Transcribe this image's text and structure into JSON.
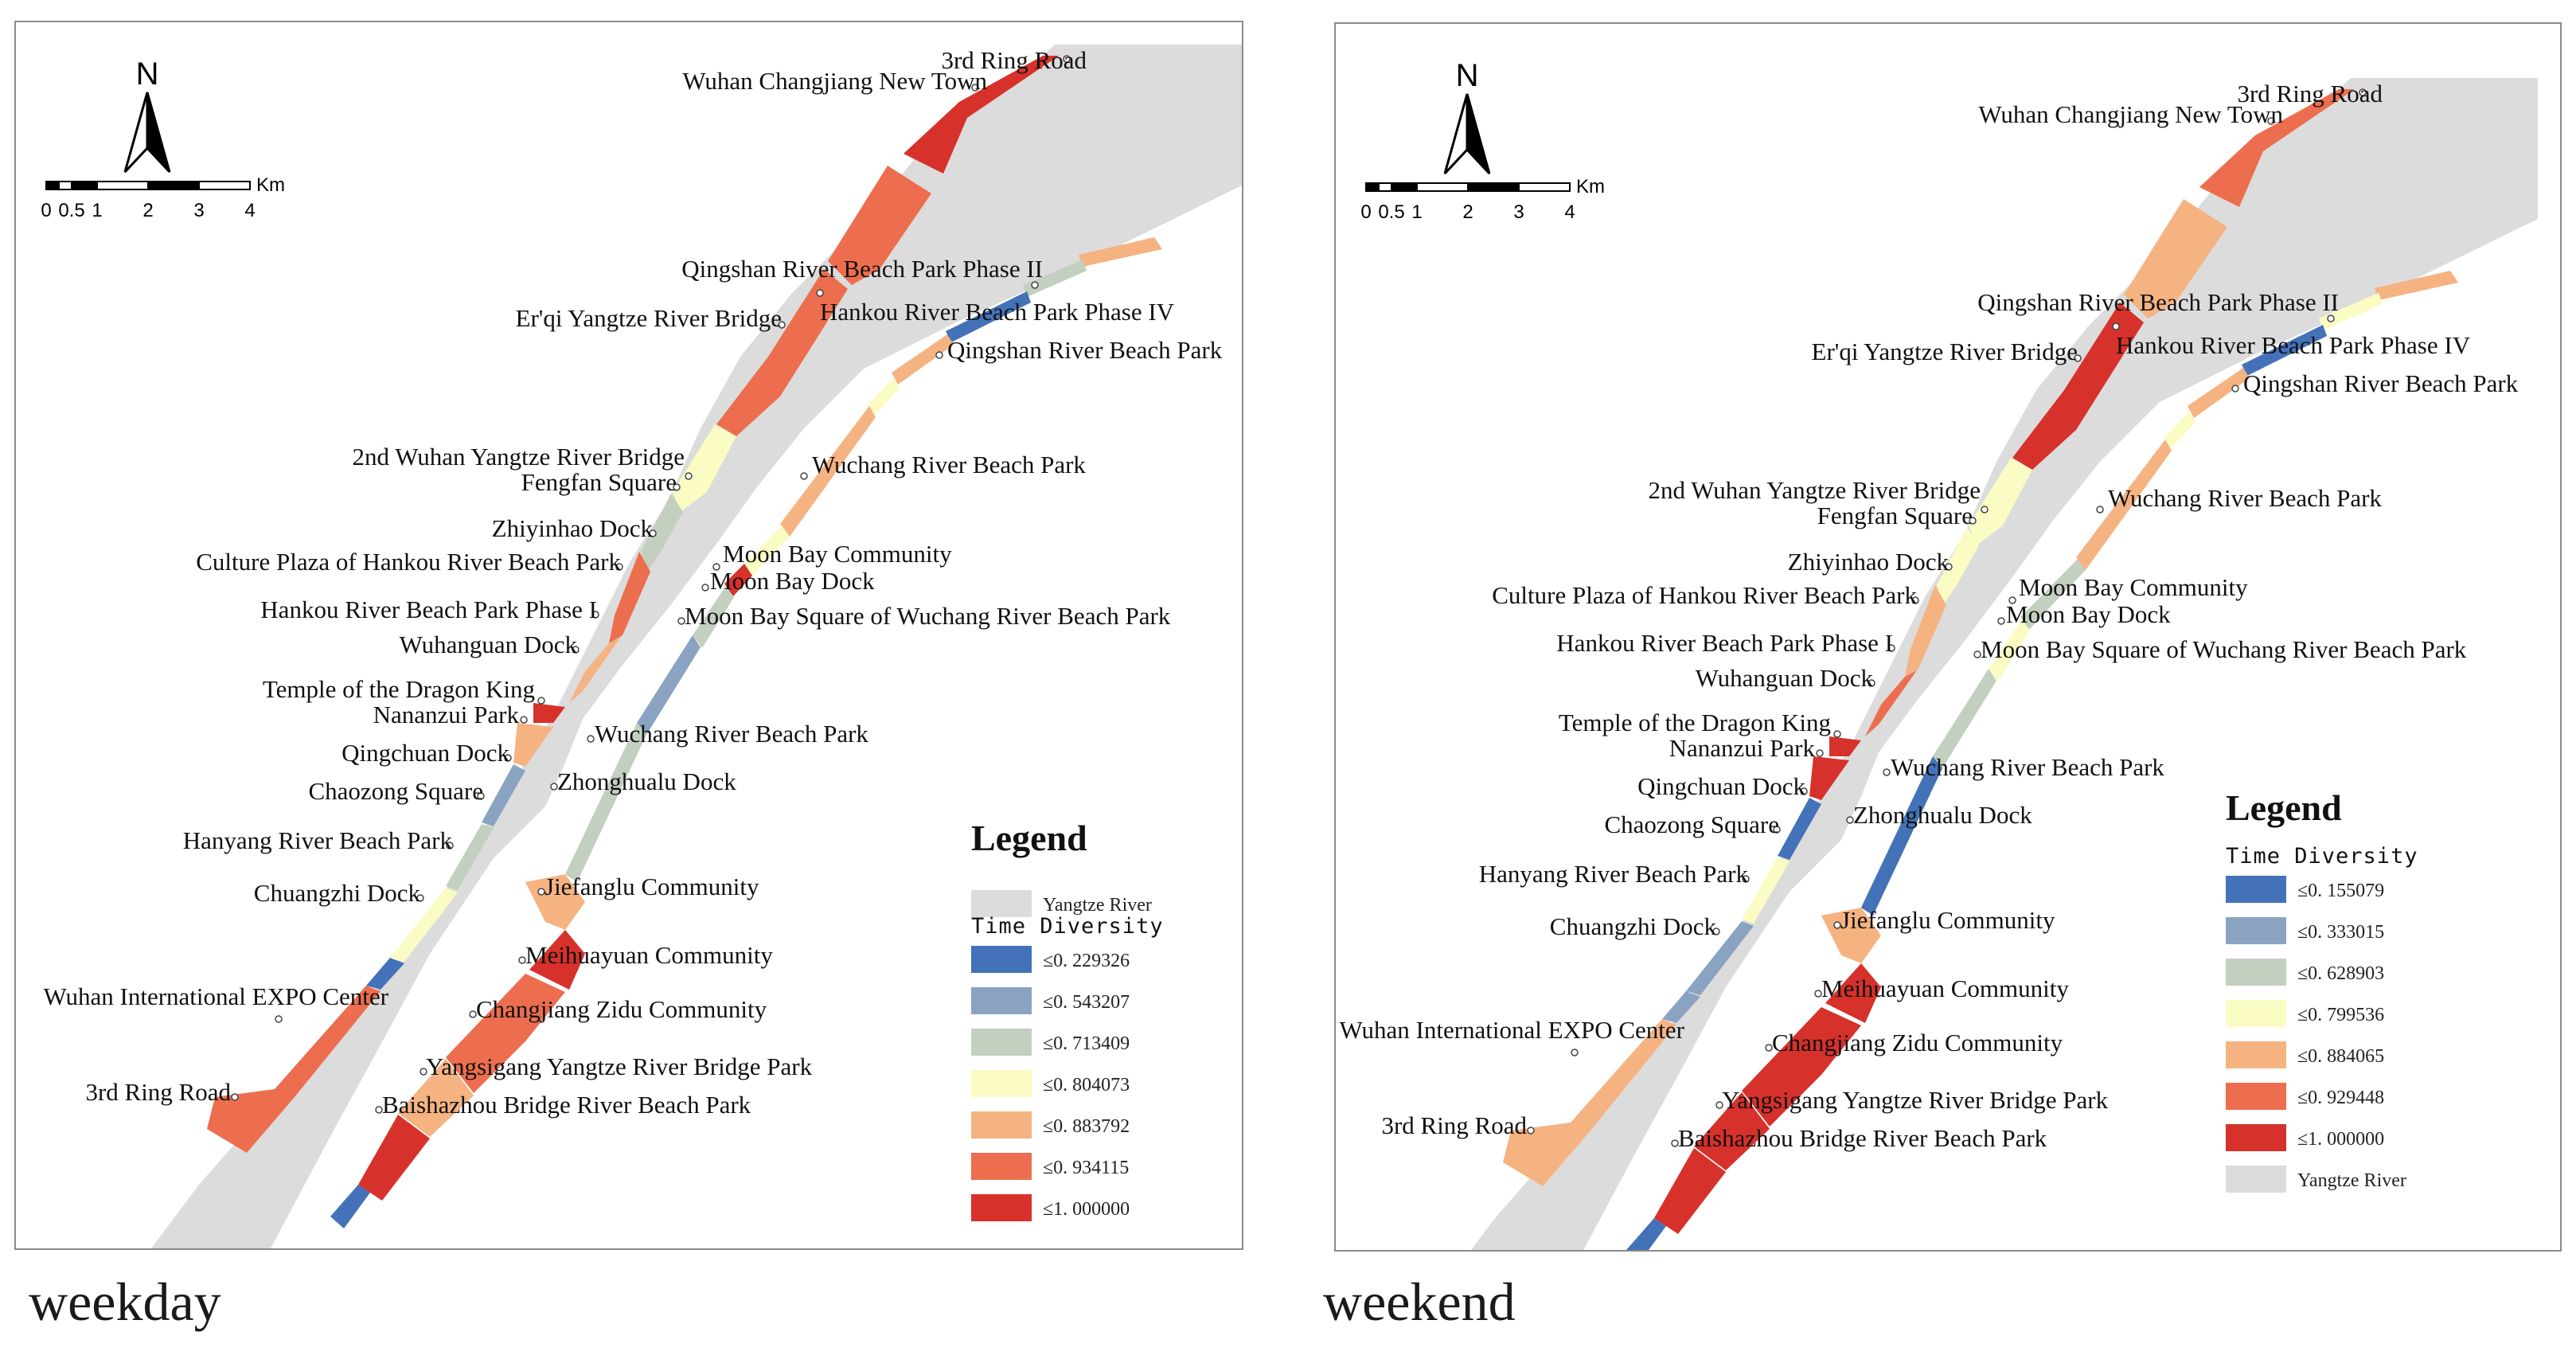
{
  "maps": [
    {
      "caption": "weekday",
      "legend": {
        "title": "Legend",
        "subtitle": "Time Diversity",
        "river_label": "Yangtze River",
        "river_first": true,
        "classes": [
          {
            "label": "≤0. 229326",
            "color": "#4472b8"
          },
          {
            "label": "≤0. 543207",
            "color": "#8aa3c1"
          },
          {
            "label": "≤0. 713409",
            "color": "#c3cfbf"
          },
          {
            "label": "≤0. 804073",
            "color": "#fbfcc3"
          },
          {
            "label": "≤0. 883792",
            "color": "#f5b382"
          },
          {
            "label": "≤0. 934115",
            "color": "#ec6e4e"
          },
          {
            "label": "≤1. 000000",
            "color": "#d7312b"
          }
        ]
      },
      "places": [
        {
          "name": "3rd Ring Road"
        },
        {
          "name": "Wuhan Changjiang New Town"
        },
        {
          "name": "Qingshan River Beach Park Phase II"
        },
        {
          "name": "Hankou River Beach Park Phase IV"
        },
        {
          "name": "Er'qi Yangtze River Bridge"
        },
        {
          "name": "Qingshan River Beach Park"
        },
        {
          "name": "2nd Wuhan Yangtze River Bridge"
        },
        {
          "name": "Wuchang River Beach Park"
        },
        {
          "name": "Fengfan Square"
        },
        {
          "name": "Zhiyinhao Dock"
        },
        {
          "name": "Moon Bay Community"
        },
        {
          "name": "Culture Plaza of Hankou River Beach Park"
        },
        {
          "name": "Moon Bay Dock"
        },
        {
          "name": "Hankou River Beach Park Phase I"
        },
        {
          "name": "Moon Bay Square of Wuchang River Beach Park"
        },
        {
          "name": "Wuhanguan Dock"
        },
        {
          "name": "Temple of the Dragon King"
        },
        {
          "name": "Nananzui Park"
        },
        {
          "name": "Wuchang River Beach Park"
        },
        {
          "name": "Qingchuan Dock"
        },
        {
          "name": "Zhonghualu Dock"
        },
        {
          "name": "Chaozong Square"
        },
        {
          "name": "Hanyang River Beach Park"
        },
        {
          "name": "Jiefanglu Community"
        },
        {
          "name": "Chuangzhi Dock"
        },
        {
          "name": "Meihuayuan Community"
        },
        {
          "name": "Wuhan International EXPO Center"
        },
        {
          "name": "Changjiang Zidu Community"
        },
        {
          "name": "Yangsigang Yangtze River Bridge Park"
        },
        {
          "name": "3rd Ring Road"
        },
        {
          "name": "Baishazhou Bridge River Beach Park"
        }
      ],
      "segments": [
        {
          "name": "changjiang-new-town-tip",
          "class": 6
        },
        {
          "name": "qingshan-upper-west",
          "class": 5
        },
        {
          "name": "erqi-west",
          "class": 5
        },
        {
          "name": "bridge2-west",
          "class": 3
        },
        {
          "name": "fengfan-west",
          "class": 2
        },
        {
          "name": "hankou-culture-west",
          "class": 5
        },
        {
          "name": "hankou-phase1-west",
          "class": 4
        },
        {
          "name": "temple-west",
          "class": 6
        },
        {
          "name": "nananzui-west",
          "class": 4
        },
        {
          "name": "qingchuan-west",
          "class": 1
        },
        {
          "name": "hanyang-west",
          "class": 2
        },
        {
          "name": "chuangzhi-west",
          "class": 3
        },
        {
          "name": "expo-upper-west",
          "class": 0
        },
        {
          "name": "expo-west",
          "class": 5
        },
        {
          "name": "east-phase4-upper",
          "class": 4
        },
        {
          "name": "east-phase4-mid",
          "class": 2
        },
        {
          "name": "east-phase4-blue",
          "class": 0
        },
        {
          "name": "east-qingshan",
          "class": 4
        },
        {
          "name": "east-wuchang-yellow",
          "class": 3
        },
        {
          "name": "east-wuchang",
          "class": 4
        },
        {
          "name": "east-moonbay-yellow",
          "class": 3
        },
        {
          "name": "east-moonbay-dock",
          "class": 6
        },
        {
          "name": "east-moonbay-square",
          "class": 2
        },
        {
          "name": "east-wuchang-lower",
          "class": 1
        },
        {
          "name": "east-zhonghualu",
          "class": 2
        },
        {
          "name": "east-jiefanglu",
          "class": 4
        },
        {
          "name": "east-meihuayuan",
          "class": 6
        },
        {
          "name": "east-zidu",
          "class": 5
        },
        {
          "name": "east-yangsigang",
          "class": 4
        },
        {
          "name": "east-baishazhou",
          "class": 6
        },
        {
          "name": "east-tail",
          "class": 0
        }
      ]
    },
    {
      "caption": "weekend",
      "legend": {
        "title": "Legend",
        "subtitle": "Time Diversity",
        "river_label": "Yangtze River",
        "river_first": false,
        "classes": [
          {
            "label": "≤0. 155079",
            "color": "#4472b8"
          },
          {
            "label": "≤0. 333015",
            "color": "#8aa3c1"
          },
          {
            "label": "≤0. 628903",
            "color": "#c3cfbf"
          },
          {
            "label": "≤0. 799536",
            "color": "#fbfcc3"
          },
          {
            "label": "≤0. 884065",
            "color": "#f5b382"
          },
          {
            "label": "≤0. 929448",
            "color": "#ec6e4e"
          },
          {
            "label": "≤1. 000000",
            "color": "#d7312b"
          }
        ]
      },
      "places": [
        {
          "name": "3rd Ring Road"
        },
        {
          "name": "Wuhan Changjiang New Town"
        },
        {
          "name": "Qingshan River Beach Park Phase II"
        },
        {
          "name": "Hankou River Beach Park Phase IV"
        },
        {
          "name": "Er'qi Yangtze River Bridge"
        },
        {
          "name": "Qingshan River Beach Park"
        },
        {
          "name": "2nd Wuhan Yangtze River Bridge"
        },
        {
          "name": "Wuchang River Beach Park"
        },
        {
          "name": "Fengfan Square"
        },
        {
          "name": "Zhiyinhao Dock"
        },
        {
          "name": "Moon Bay Community"
        },
        {
          "name": "Culture Plaza of Hankou River Beach Park"
        },
        {
          "name": "Moon Bay Dock"
        },
        {
          "name": "Hankou River Beach Park Phase I"
        },
        {
          "name": "Moon Bay Square of Wuchang River Beach Park"
        },
        {
          "name": "Wuhanguan Dock"
        },
        {
          "name": "Temple of the Dragon King"
        },
        {
          "name": "Nananzui Park"
        },
        {
          "name": "Wuchang River Beach Park"
        },
        {
          "name": "Qingchuan Dock"
        },
        {
          "name": "Zhonghualu Dock"
        },
        {
          "name": "Chaozong Square"
        },
        {
          "name": "Hanyang River Beach Park"
        },
        {
          "name": "Jiefanglu Community"
        },
        {
          "name": "Chuangzhi Dock"
        },
        {
          "name": "Meihuayuan Community"
        },
        {
          "name": "Wuhan International EXPO Center"
        },
        {
          "name": "Changjiang Zidu Community"
        },
        {
          "name": "Yangsigang Yangtze River Bridge Park"
        },
        {
          "name": "3rd Ring Road"
        },
        {
          "name": "Baishazhou Bridge River Beach Park"
        }
      ],
      "segments": [
        {
          "name": "changjiang-new-town-tip",
          "class": 5
        },
        {
          "name": "qingshan-upper-west",
          "class": 4
        },
        {
          "name": "erqi-west",
          "class": 6
        },
        {
          "name": "bridge2-west",
          "class": 3
        },
        {
          "name": "fengfan-west",
          "class": 3
        },
        {
          "name": "hankou-culture-west",
          "class": 4
        },
        {
          "name": "hankou-phase1-west",
          "class": 5
        },
        {
          "name": "temple-west",
          "class": 6
        },
        {
          "name": "nananzui-west",
          "class": 6
        },
        {
          "name": "qingchuan-west",
          "class": 0
        },
        {
          "name": "hanyang-west",
          "class": 3
        },
        {
          "name": "chuangzhi-west",
          "class": 1
        },
        {
          "name": "expo-upper-west",
          "class": 1
        },
        {
          "name": "expo-west",
          "class": 4
        },
        {
          "name": "east-phase4-upper",
          "class": 4
        },
        {
          "name": "east-phase4-mid",
          "class": 3
        },
        {
          "name": "east-phase4-blue",
          "class": 0
        },
        {
          "name": "east-qingshan",
          "class": 4
        },
        {
          "name": "east-wuchang-yellow",
          "class": 3
        },
        {
          "name": "east-wuchang",
          "class": 4
        },
        {
          "name": "east-moonbay-yellow",
          "class": 2
        },
        {
          "name": "east-moonbay-dock",
          "class": 2
        },
        {
          "name": "east-moonbay-square",
          "class": 3
        },
        {
          "name": "east-wuchang-lower",
          "class": 2
        },
        {
          "name": "east-zhonghualu",
          "class": 0
        },
        {
          "name": "east-jiefanglu",
          "class": 4
        },
        {
          "name": "east-meihuayuan",
          "class": 6
        },
        {
          "name": "east-zidu",
          "class": 6
        },
        {
          "name": "east-yangsigang",
          "class": 6
        },
        {
          "name": "east-baishazhou",
          "class": 6
        },
        {
          "name": "east-tail",
          "class": 0
        }
      ]
    }
  ],
  "north_label": "N",
  "scale": {
    "unit": "Km",
    "ticks": [
      "0",
      "0.5",
      "1",
      "2",
      "3",
      "4"
    ]
  },
  "river_color": "#dcdcdc"
}
